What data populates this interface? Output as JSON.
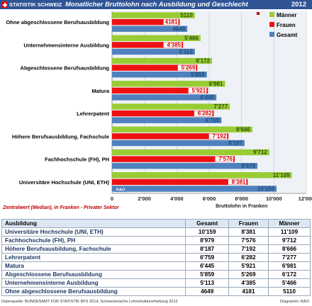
{
  "header": {
    "brand": "STATISTIK SCHWEIZ",
    "title": "Monatlicher Bruttolohn nach Ausbildung und Geschlecht",
    "year": "2012"
  },
  "chart_data": {
    "type": "bar",
    "orientation": "horizontal",
    "categories": [
      "Universitäre Hochschule (UNI, ETH)",
      "Fachhochschule (FH), PH",
      "Höhere Berufsausbildung, Fachschule",
      "Lehrerpatent",
      "Matura",
      "Abgeschlossene Berufsausbildung",
      "Unternehmensinterne Ausbildung",
      "Ohne abgeschlossene Berufsausbildung"
    ],
    "series": [
      {
        "name": "Männer",
        "color": "#99cc33",
        "values": [
          11109,
          9712,
          8666,
          7277,
          6981,
          6172,
          5466,
          5110
        ],
        "labels": [
          "11'109",
          "9'712",
          "8'666",
          "7'277",
          "6'981",
          "6'172",
          "5'466",
          "5110"
        ]
      },
      {
        "name": "Frauen",
        "color": "#ee1111",
        "values": [
          8381,
          7576,
          7192,
          6282,
          5921,
          5269,
          4385,
          4181
        ],
        "labels": [
          "8'381",
          "7'576",
          "7'192",
          "6'282",
          "5'921",
          "5'269",
          "4'385",
          "4181"
        ]
      },
      {
        "name": "Gesamt",
        "color": "#4f81bd",
        "values": [
          10159,
          8979,
          8187,
          6759,
          6445,
          5859,
          5113,
          4649
        ],
        "labels": [
          "10'159",
          "8'979",
          "8'187",
          "6'759",
          "6'445",
          "5'859",
          "5'113",
          "4649"
        ]
      }
    ],
    "xlim": [
      0,
      12000
    ],
    "xticks": [
      0,
      2000,
      4000,
      6000,
      8000,
      10000,
      12000
    ],
    "xtick_labels": [
      "0",
      "2'000",
      "4'000",
      "6'000",
      "8'000",
      "10'000",
      "12'000"
    ],
    "xlabel": "Bruttolohn in Franken",
    "grid": true,
    "legend": "top-right",
    "badge": "RAO"
  },
  "subtitle": "Zentralwert (Median), in Franken - Privater Sektor",
  "table": {
    "headers": [
      "Ausbildung",
      "Gesamt",
      "Frauen",
      "Männer"
    ],
    "rows": [
      [
        "Universitäre Hochschule (UNI, ETH)",
        "10'159",
        "8'381",
        "11'109"
      ],
      [
        "Fachhochschule (FH), PH",
        "8'979",
        "7'576",
        "9'712"
      ],
      [
        "Höhere Berufsausbildung, Fachschule",
        "8'187",
        "7'192",
        "8'666"
      ],
      [
        "Lehrerpatent",
        "6'759",
        "6'282",
        "7'277"
      ],
      [
        "Matura",
        "6'445",
        "5'921",
        "6'981"
      ],
      [
        "Abgeschlossene Berufsausbildung",
        "5'859",
        "5'269",
        "6'172"
      ],
      [
        "Unternehmensinterne Ausbildung",
        "5'113",
        "4'385",
        "5'466"
      ],
      [
        "Ohne abgeschlossene Berufsausbildung",
        "4649",
        "4181",
        "5110"
      ]
    ]
  },
  "footer": {
    "source": "Datenquelle: BUNDESAMT FÜR STATISTIK BFS 2014, Schweizerische Lohnstrukturerhebung 2012",
    "diagram": "Diagramm: RAO"
  }
}
